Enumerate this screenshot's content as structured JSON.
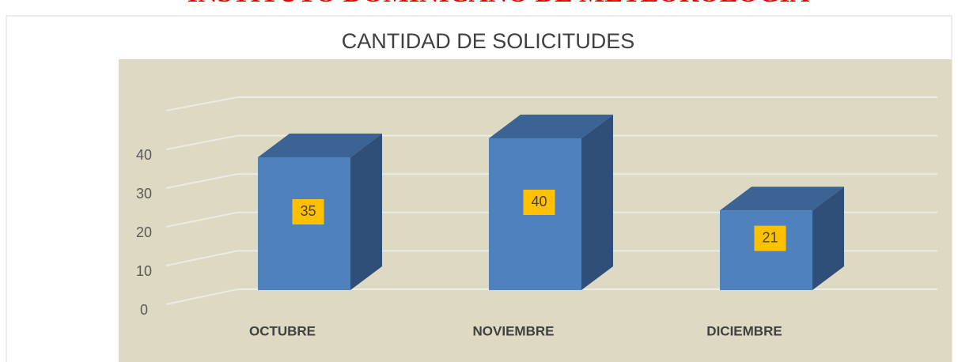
{
  "header": {
    "title": "INSTITUTO DOMINICANO DE METEOROLOGIA"
  },
  "chart_data": {
    "type": "bar3d",
    "title": "CANTIDAD DE SOLICITUDES",
    "categories": [
      "OCTUBRE",
      "NOVIEMBRE",
      "DICIEMBRE"
    ],
    "values": [
      35,
      40,
      21
    ],
    "color": "#4f81bd",
    "ylim": [
      0,
      50
    ],
    "yticks": [
      0,
      10,
      20,
      30,
      40
    ],
    "grid": true
  }
}
